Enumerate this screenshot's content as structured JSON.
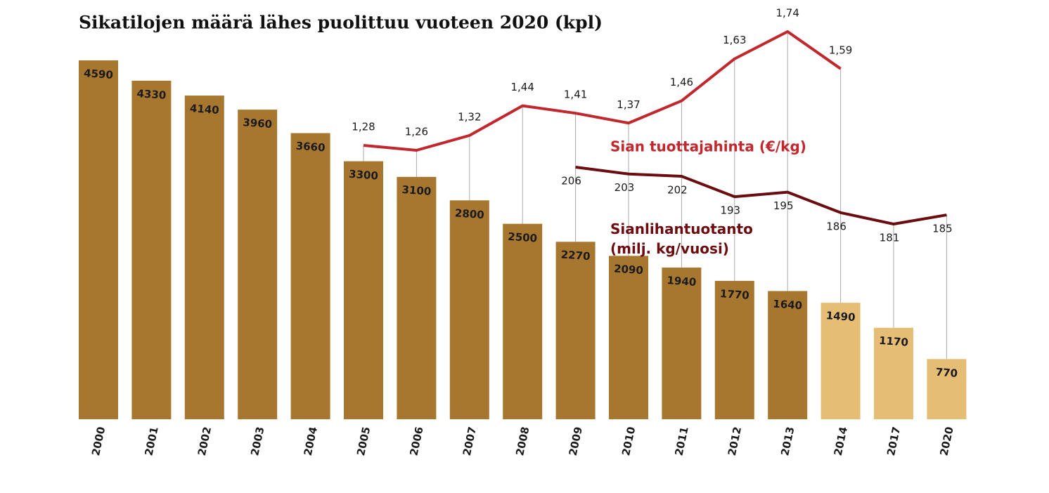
{
  "chart_data": {
    "type": "bar",
    "title": "Sikatilojen määrä lähes puolittuu vuoteen 2020 (kpl)",
    "categories": [
      "2000",
      "2001",
      "2002",
      "2003",
      "2004",
      "2005",
      "2006",
      "2007",
      "2008",
      "2009",
      "2010",
      "2011",
      "2012",
      "2013",
      "2014",
      "2017",
      "2020"
    ],
    "series": [
      {
        "type": "bar",
        "values": [
          4590,
          4330,
          4140,
          3960,
          3660,
          3300,
          3100,
          2800,
          2500,
          2270,
          2090,
          1940,
          1770,
          1640,
          1490,
          1170,
          770
        ],
        "colors": [
          "#a8772f",
          "#a8772f",
          "#a8772f",
          "#a8772f",
          "#a8772f",
          "#a8772f",
          "#a8772f",
          "#a8772f",
          "#a8772f",
          "#a8772f",
          "#a8772f",
          "#a8772f",
          "#a8772f",
          "#a8772f",
          "#e5bd74",
          "#e5bd74",
          "#e5bd74"
        ]
      },
      {
        "type": "line",
        "name": "Sian tuottajahinta (€/kg)",
        "color": "#c1272d",
        "values": [
          null,
          null,
          null,
          null,
          null,
          1.28,
          1.26,
          1.32,
          1.44,
          1.41,
          1.37,
          1.46,
          1.63,
          1.74,
          1.59,
          null,
          null
        ],
        "value_labels": [
          null,
          null,
          null,
          null,
          null,
          "1,28",
          "1,26",
          "1,32",
          "1,44",
          "1,41",
          "1,37",
          "1,46",
          "1,63",
          "1,74",
          "1,59",
          null,
          null
        ]
      },
      {
        "type": "line",
        "name": "Sianlihantuotanto (milj. kg/vuosi)",
        "color": "#6b0d10",
        "values": [
          null,
          null,
          null,
          null,
          null,
          null,
          null,
          null,
          null,
          206,
          203,
          202,
          193,
          195,
          186,
          181,
          185
        ]
      }
    ]
  }
}
